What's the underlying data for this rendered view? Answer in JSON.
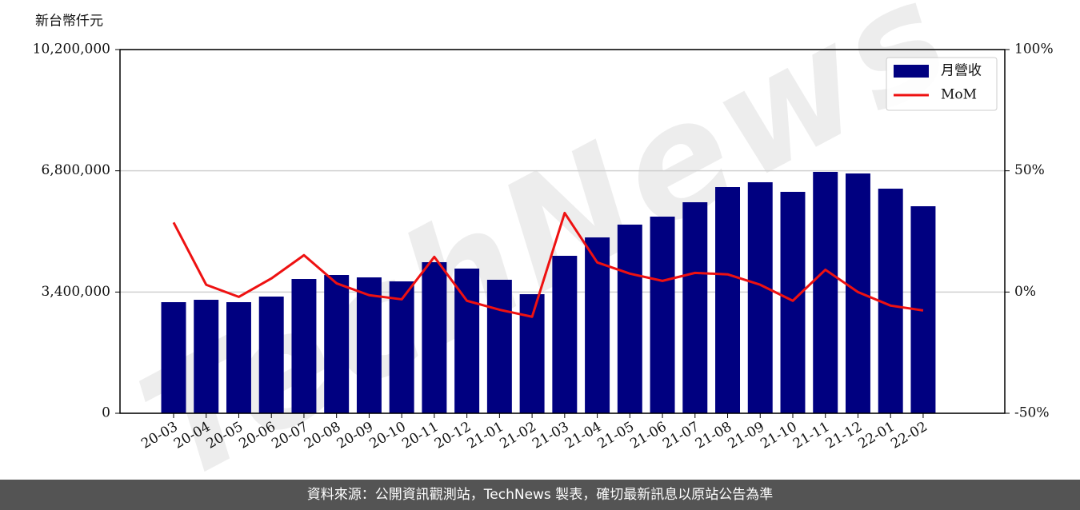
{
  "chart_data": {
    "type": "bar_line",
    "y_label": "新台幣仟元",
    "watermark": "TechNews",
    "categories": [
      "20-03",
      "20-04",
      "20-05",
      "20-06",
      "20-07",
      "20-08",
      "20-09",
      "20-10",
      "20-11",
      "20-12",
      "21-01",
      "21-02",
      "21-03",
      "21-04",
      "21-05",
      "21-06",
      "21-07",
      "21-08",
      "21-09",
      "21-10",
      "21-11",
      "21-12",
      "22-01",
      "22-02"
    ],
    "series": [
      {
        "name": "月營收",
        "color": "#000080",
        "type": "bar",
        "values": [
          3116000,
          3183000,
          3116000,
          3273000,
          3766000,
          3878000,
          3811000,
          3699000,
          4237000,
          4058000,
          3744000,
          3340000,
          4416000,
          4932000,
          5291000,
          5515000,
          5918000,
          6344000,
          6479000,
          6210000,
          6770000,
          6725000,
          6299000,
          5806000
        ]
      },
      {
        "name": "MoM",
        "color": "#ee1111",
        "type": "line",
        "axis": "y2",
        "values": [
          28.7,
          3.0,
          -2.0,
          5.6,
          15.2,
          3.6,
          -1.3,
          -3.0,
          14.5,
          -3.6,
          -7.3,
          -10.2,
          32.6,
          12.2,
          7.6,
          4.6,
          7.9,
          7.3,
          3.0,
          -3.6,
          9.2,
          0,
          -5.6,
          -7.6
        ]
      }
    ],
    "ylim": [
      0,
      10200000
    ],
    "yticks": [
      0,
      {
        "value": 3400000,
        "label": "3,400,000"
      },
      {
        "value": 6800000,
        "label": "6,800,000"
      },
      {
        "value": 10200000,
        "label": "10,200,000"
      }
    ],
    "y2lim": [
      -50,
      100
    ],
    "y2ticks": [
      {
        "value": -50,
        "label": "-50%"
      },
      {
        "value": 0,
        "label": "0%"
      },
      {
        "value": 50,
        "label": "50%"
      },
      {
        "value": 100,
        "label": "100%"
      }
    ],
    "grid": true,
    "legend": "upper right"
  },
  "footer": "資料來源：公開資訊觀測站，TechNews 製表，確切最新訊息以原站公告為準"
}
